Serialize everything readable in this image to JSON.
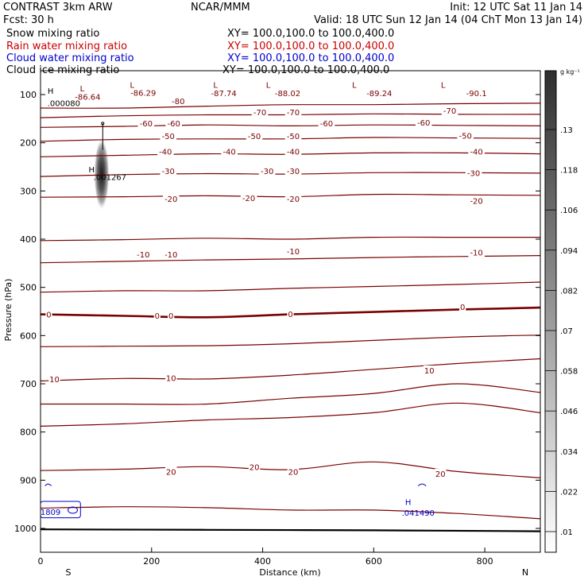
{
  "header": {
    "line1_left": "CONTRAST  3km ARW",
    "line1_mid": "NCAR/MMM",
    "line1_right": "Init: 12 UTC Sat 11 Jan 14",
    "line2_left": "Fcst:    30 h",
    "line2_right": "Valid: 18 UTC Sun 12 Jan 14 (04 ChT Mon 13 Jan 14)"
  },
  "legend": [
    {
      "label": "Snow mixing ratio",
      "xy": "",
      "color": "#000000"
    },
    {
      "label": "Rain water mixing ratio",
      "xy": "XY= 100.0,100.0 to 100.0,400.0",
      "color": "#cc0000"
    },
    {
      "label": "Cloud water mixing ratio",
      "xy": "XY= 100.0,100.0 to 100.0,400.0",
      "color": "#0000cc"
    },
    {
      "label": "Cloud ice mixing ratio",
      "xy": "XY= 100.0,100.0 to 100.0,400.0",
      "color": "#000000"
    }
  ],
  "snow_xy": "XY= 100.0,100.0 to 100.0,400.0",
  "colors": {
    "temperature": "#7a0000",
    "cloud_water": "#0000cc",
    "ground": "#000000"
  },
  "chart_data": {
    "type": "contour-cross-section",
    "xlabel": "Distance (km)",
    "ylabel": "Pressure (hPa)",
    "xlim": [
      0,
      900
    ],
    "ylim": [
      1000,
      50
    ],
    "xticks": [
      0,
      200,
      400,
      600,
      800
    ],
    "yticks": [
      100,
      200,
      300,
      400,
      500,
      600,
      700,
      800,
      900,
      1000
    ],
    "x_end_labels": {
      "left": "S",
      "right": "N"
    },
    "colorbar": {
      "unit": "g kg⁻¹",
      "ticks": [
        ".01",
        ".022",
        ".034",
        ".046",
        ".058",
        ".07",
        ".082",
        ".094",
        ".106",
        ".118",
        ".13"
      ]
    },
    "isotherm_lines": [
      {
        "level": "-80",
        "x": [
          0,
          150,
          300,
          450,
          600,
          750,
          900
        ],
        "p": [
          128,
          128,
          124,
          121,
          121,
          119,
          118
        ]
      },
      {
        "level": "-70",
        "x": [
          0,
          150,
          300,
          450,
          600,
          750,
          900
        ],
        "p": [
          148,
          144,
          142,
          142,
          140,
          141,
          141
        ]
      },
      {
        "level": "-60",
        "x": [
          0,
          150,
          300,
          450,
          600,
          750,
          900
        ],
        "p": [
          168,
          166,
          163,
          165,
          163,
          164,
          165
        ]
      },
      {
        "level": "-50",
        "x": [
          0,
          150,
          300,
          450,
          600,
          750,
          900
        ],
        "p": [
          197,
          193,
          192,
          192,
          189,
          190,
          191
        ]
      },
      {
        "level": "-40",
        "x": [
          0,
          150,
          300,
          450,
          600,
          750,
          900
        ],
        "p": [
          229,
          226,
          223,
          224,
          221,
          221,
          223
        ]
      },
      {
        "level": "-30",
        "x": [
          0,
          150,
          300,
          450,
          600,
          750,
          900
        ],
        "p": [
          270,
          266,
          264,
          265,
          262,
          262,
          263
        ]
      },
      {
        "level": "-20",
        "x": [
          0,
          150,
          300,
          450,
          600,
          750,
          900
        ],
        "p": [
          313,
          312,
          310,
          312,
          307,
          308,
          309
        ]
      },
      {
        "level": "-10",
        "x": [
          0,
          150,
          300,
          450,
          600,
          750,
          900
        ],
        "p": [
          403,
          401,
          398,
          400,
          396,
          396,
          396
        ]
      },
      {
        "level": "",
        "x": [
          0,
          150,
          300,
          450,
          600,
          750,
          900
        ],
        "p": [
          449,
          446,
          443,
          441,
          438,
          436,
          434
        ]
      },
      {
        "level": "",
        "x": [
          0,
          150,
          300,
          450,
          600,
          750,
          900
        ],
        "p": [
          510,
          507,
          507,
          502,
          498,
          494,
          489
        ]
      },
      {
        "level": "0",
        "x": [
          0,
          150,
          300,
          450,
          600,
          750,
          900
        ],
        "p": [
          556,
          559,
          562,
          556,
          551,
          546,
          542
        ]
      },
      {
        "level": "",
        "x": [
          0,
          150,
          300,
          450,
          600,
          750,
          900
        ],
        "p": [
          623,
          622,
          621,
          617,
          610,
          603,
          599
        ]
      },
      {
        "level": "10",
        "x": [
          0,
          150,
          300,
          450,
          600,
          750,
          900
        ],
        "p": [
          694,
          689,
          690,
          682,
          670,
          658,
          648
        ]
      },
      {
        "level": "",
        "x": [
          0,
          150,
          300,
          450,
          600,
          750,
          900
        ],
        "p": [
          742,
          742,
          742,
          730,
          720,
          700,
          718
        ]
      },
      {
        "level": "",
        "x": [
          0,
          150,
          300,
          450,
          600,
          750,
          900
        ],
        "p": [
          788,
          783,
          775,
          770,
          760,
          740,
          760
        ]
      },
      {
        "level": "20",
        "x": [
          0,
          150,
          300,
          450,
          600,
          750,
          900
        ],
        "p": [
          880,
          877,
          872,
          878,
          862,
          882,
          895
        ]
      },
      {
        "level": "",
        "x": [
          0,
          150,
          300,
          450,
          600,
          750,
          900
        ],
        "p": [
          958,
          955,
          957,
          962,
          962,
          969,
          980
        ]
      }
    ],
    "contour_labels": [
      {
        "text": "-86.64",
        "x": 85,
        "p": 104
      },
      {
        "text": "-86.29",
        "x": 185,
        "p": 96
      },
      {
        "text": "-87.74",
        "x": 330,
        "p": 97
      },
      {
        "text": "-88.02",
        "x": 445,
        "p": 97
      },
      {
        "text": "-89.24",
        "x": 610,
        "p": 97
      },
      {
        "text": "-90.1",
        "x": 785,
        "p": 97
      },
      {
        "text": "-80",
        "x": 248,
        "p": 113
      },
      {
        "text": "-70",
        "x": 395,
        "p": 136
      },
      {
        "text": "-70",
        "x": 455,
        "p": 136
      },
      {
        "text": "-70",
        "x": 737,
        "p": 133
      },
      {
        "text": "-60",
        "x": 190,
        "p": 159
      },
      {
        "text": "-60",
        "x": 240,
        "p": 159
      },
      {
        "text": "-60",
        "x": 515,
        "p": 159
      },
      {
        "text": "-60",
        "x": 690,
        "p": 158
      },
      {
        "text": "-50",
        "x": 230,
        "p": 186
      },
      {
        "text": "-50",
        "x": 385,
        "p": 186
      },
      {
        "text": "-50",
        "x": 455,
        "p": 186
      },
      {
        "text": "-50",
        "x": 765,
        "p": 185
      },
      {
        "text": "-40",
        "x": 225,
        "p": 218
      },
      {
        "text": "-40",
        "x": 340,
        "p": 218
      },
      {
        "text": "-40",
        "x": 455,
        "p": 218
      },
      {
        "text": "-40",
        "x": 785,
        "p": 218
      },
      {
        "text": "-30",
        "x": 230,
        "p": 258
      },
      {
        "text": "-30",
        "x": 408,
        "p": 258
      },
      {
        "text": "-30",
        "x": 455,
        "p": 258
      },
      {
        "text": "-30",
        "x": 780,
        "p": 262
      },
      {
        "text": "-20",
        "x": 235,
        "p": 316
      },
      {
        "text": "-20",
        "x": 375,
        "p": 314
      },
      {
        "text": "-20",
        "x": 455,
        "p": 316
      },
      {
        "text": "-20",
        "x": 785,
        "p": 320
      },
      {
        "text": "-10",
        "x": 185,
        "p": 431
      },
      {
        "text": "-10",
        "x": 235,
        "p": 431
      },
      {
        "text": "-10",
        "x": 455,
        "p": 425
      },
      {
        "text": "-10",
        "x": 785,
        "p": 427
      },
      {
        "text": "0",
        "x": 15,
        "p": 556
      },
      {
        "text": "0",
        "x": 210,
        "p": 558
      },
      {
        "text": "0",
        "x": 235,
        "p": 558
      },
      {
        "text": "0",
        "x": 450,
        "p": 555
      },
      {
        "text": "0",
        "x": 760,
        "p": 540
      },
      {
        "text": "10",
        "x": 25,
        "p": 690
      },
      {
        "text": "10",
        "x": 235,
        "p": 688
      },
      {
        "text": "10",
        "x": 700,
        "p": 672
      },
      {
        "text": "20",
        "x": 235,
        "p": 882
      },
      {
        "text": "20",
        "x": 385,
        "p": 872
      },
      {
        "text": "20",
        "x": 455,
        "p": 882
      },
      {
        "text": "20",
        "x": 720,
        "p": 886
      }
    ],
    "extrema_markers": [
      {
        "text": "H",
        "x": 18,
        "p": 92
      },
      {
        "text": "L",
        "x": 75,
        "p": 87
      },
      {
        "text": "L",
        "x": 165,
        "p": 79
      },
      {
        "text": "L",
        "x": 315,
        "p": 79
      },
      {
        "text": "L",
        "x": 410,
        "p": 79
      },
      {
        "text": "L",
        "x": 565,
        "p": 79
      },
      {
        "text": "L",
        "x": 725,
        "p": 79
      },
      {
        "text": "H",
        "x": 92,
        "p": 255
      }
    ],
    "value_labels": [
      {
        "text": ".000080",
        "x": 42,
        "p": 117,
        "color": "#000000"
      },
      {
        "text": ".001267",
        "x": 125,
        "p": 271,
        "color": "#000000"
      },
      {
        "text": "H",
        "x": 662,
        "p": 945,
        "color": "#0000cc"
      },
      {
        "text": ".041490",
        "x": 680,
        "p": 967,
        "color": "#0000cc"
      },
      {
        "text": "1809",
        "x": 18,
        "p": 965,
        "color": "#0000cc"
      }
    ],
    "snow_blob": {
      "x_center": 110,
      "p_center": 265,
      "x_halfwidth": 14,
      "p_half": 75,
      "max_value": 0.13
    },
    "ground": {
      "x": [
        0,
        300,
        600,
        900
      ],
      "p": [
        1002,
        1003,
        1004,
        1006
      ]
    }
  }
}
